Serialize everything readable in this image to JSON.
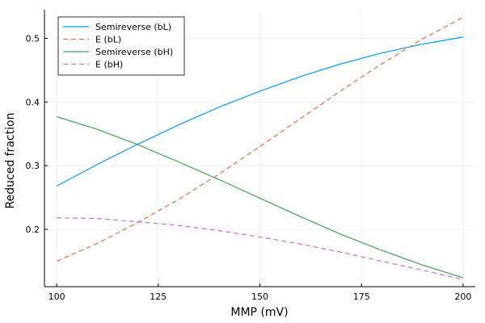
{
  "chart_data": {
    "type": "line",
    "title": "",
    "xlabel": "MMP (mV)",
    "ylabel": "Reduced fraction",
    "xlim": [
      97,
      203
    ],
    "ylim": [
      0.11,
      0.545
    ],
    "xticks": [
      100,
      125,
      150,
      175,
      200
    ],
    "yticks": [
      0.2,
      0.3,
      0.4,
      0.5
    ],
    "xtick_labels": [
      "100",
      "125",
      "150",
      "175",
      "200"
    ],
    "ytick_labels": [
      "0.2",
      "0.3",
      "0.4",
      "0.5"
    ],
    "grid": true,
    "legend_position": "top-left",
    "x": [
      100,
      110,
      120,
      130,
      140,
      150,
      160,
      170,
      180,
      190,
      200
    ],
    "series": [
      {
        "name": "Semireverse (bL)",
        "color": "#009AFA",
        "dash": "solid",
        "values": [
          0.268,
          0.302,
          0.334,
          0.364,
          0.392,
          0.417,
          0.44,
          0.46,
          0.477,
          0.491,
          0.502
        ]
      },
      {
        "name": "E (bL)",
        "color": "#E36F47",
        "dash": "dashed",
        "values": [
          0.15,
          0.178,
          0.211,
          0.247,
          0.287,
          0.33,
          0.374,
          0.418,
          0.46,
          0.499,
          0.533
        ]
      },
      {
        "name": "Semireverse (bH)",
        "color": "#3EA44E",
        "dash": "solid",
        "values": [
          0.377,
          0.357,
          0.333,
          0.306,
          0.278,
          0.249,
          0.22,
          0.192,
          0.167,
          0.144,
          0.124
        ]
      },
      {
        "name": "E (bH)",
        "color": "#C271D2",
        "dash": "dashed",
        "values": [
          0.218,
          0.217,
          0.212,
          0.206,
          0.198,
          0.188,
          0.177,
          0.164,
          0.15,
          0.136,
          0.121
        ]
      }
    ]
  }
}
